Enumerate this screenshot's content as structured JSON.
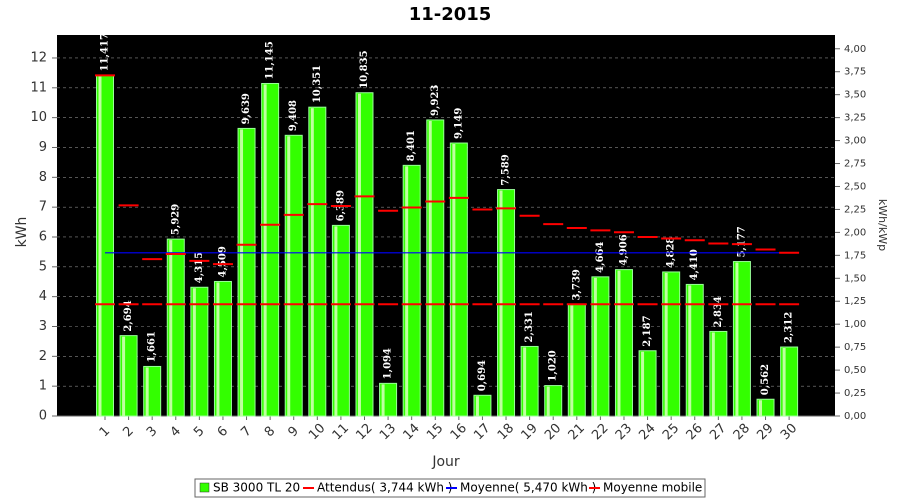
{
  "chart_data": {
    "type": "bar",
    "title": "11-2015",
    "x_label": "Jour",
    "y_label": "kWh",
    "y2_label": "kWh/kWp",
    "categories": [
      "1",
      "2",
      "3",
      "4",
      "5",
      "6",
      "7",
      "8",
      "9",
      "10",
      "11",
      "12",
      "13",
      "14",
      "15",
      "16",
      "17",
      "18",
      "19",
      "20",
      "21",
      "22",
      "23",
      "24",
      "25",
      "26",
      "27",
      "28",
      "29",
      "30"
    ],
    "series": [
      {
        "name": "SB 3000 TL 20",
        "color": "#33ff00",
        "kind": "bar",
        "values": [
          11.417,
          2.694,
          1.661,
          5.929,
          4.315,
          4.509,
          9.639,
          11.145,
          9.408,
          10.351,
          6.389,
          10.835,
          1.094,
          8.401,
          9.923,
          9.149,
          0.694,
          7.589,
          2.331,
          1.02,
          3.739,
          4.664,
          4.906,
          2.187,
          4.828,
          4.41,
          2.834,
          5.177,
          0.562,
          2.312
        ],
        "value_labels": [
          "11,417",
          "2,694",
          "1,661",
          "5,929",
          "4,315",
          "4,509",
          "9,639",
          "11,145",
          "9,408",
          "10,351",
          "6,389",
          "10,835",
          "1,094",
          "8,401",
          "9,923",
          "9,149",
          "0,694",
          "7,589",
          "2,331",
          "1,020",
          "3,739",
          "4,664",
          "4,906",
          "2,187",
          "4,828",
          "4,410",
          "2,834",
          "5,177",
          "0,562",
          "2,312"
        ]
      },
      {
        "name": "Attendus( 3,744 kWh )",
        "color": "#ff0000",
        "kind": "dash",
        "values": [
          3.744,
          3.744,
          3.744,
          3.744,
          3.744,
          3.744,
          3.744,
          3.744,
          3.744,
          3.744,
          3.744,
          3.744,
          3.744,
          3.744,
          3.744,
          3.744,
          3.744,
          3.744,
          3.744,
          3.744,
          3.744,
          3.744,
          3.744,
          3.744,
          3.744,
          3.744,
          3.744,
          3.744,
          3.744,
          3.744
        ]
      },
      {
        "name": "Moyenne( 5,470 kWh )",
        "color": "#0000ff",
        "kind": "line",
        "values": [
          5.47,
          5.47,
          5.47,
          5.47,
          5.47,
          5.47,
          5.47,
          5.47,
          5.47,
          5.47,
          5.47,
          5.47,
          5.47,
          5.47,
          5.47,
          5.47,
          5.47,
          5.47,
          5.47,
          5.47,
          5.47,
          5.47,
          5.47,
          5.47,
          5.47,
          5.47,
          5.47,
          5.47,
          5.47,
          5.47
        ]
      },
      {
        "name": "Moyenne mobile",
        "color": "#ff0000",
        "kind": "dash",
        "values": [
          11.417,
          7.06,
          5.26,
          5.43,
          5.2,
          5.09,
          5.74,
          6.41,
          6.74,
          7.1,
          7.04,
          7.36,
          6.88,
          6.99,
          7.19,
          7.31,
          6.92,
          6.96,
          6.71,
          6.43,
          6.3,
          6.22,
          6.16,
          6.0,
          5.95,
          5.89,
          5.78,
          5.76,
          5.58,
          5.47
        ]
      }
    ],
    "ylim": [
      0,
      12.77
    ],
    "yticks": [
      0,
      1,
      2,
      3,
      4,
      5,
      6,
      7,
      8,
      9,
      10,
      11,
      12
    ],
    "y2lim": [
      0,
      4.15
    ],
    "y2ticks": [
      {
        "value": 0,
        "label": "0,00"
      },
      {
        "value": 0.25,
        "label": "0,25"
      },
      {
        "value": 0.5,
        "label": "0,50"
      },
      {
        "value": 0.75,
        "label": "0,75"
      },
      {
        "value": 1,
        "label": "1,00"
      },
      {
        "value": 1.25,
        "label": "1,25"
      },
      {
        "value": 1.5,
        "label": "1,50"
      },
      {
        "value": 1.75,
        "label": "1,75"
      },
      {
        "value": 2,
        "label": "2,00"
      },
      {
        "value": 2.25,
        "label": "2,25"
      },
      {
        "value": 2.5,
        "label": "2,50"
      },
      {
        "value": 2.75,
        "label": "2,75"
      },
      {
        "value": 3,
        "label": "3,00"
      },
      {
        "value": 3.25,
        "label": "3,25"
      },
      {
        "value": 3.5,
        "label": "3,50"
      },
      {
        "value": 3.75,
        "label": "3,75"
      },
      {
        "value": 4,
        "label": "4,00"
      }
    ],
    "grid": true
  }
}
